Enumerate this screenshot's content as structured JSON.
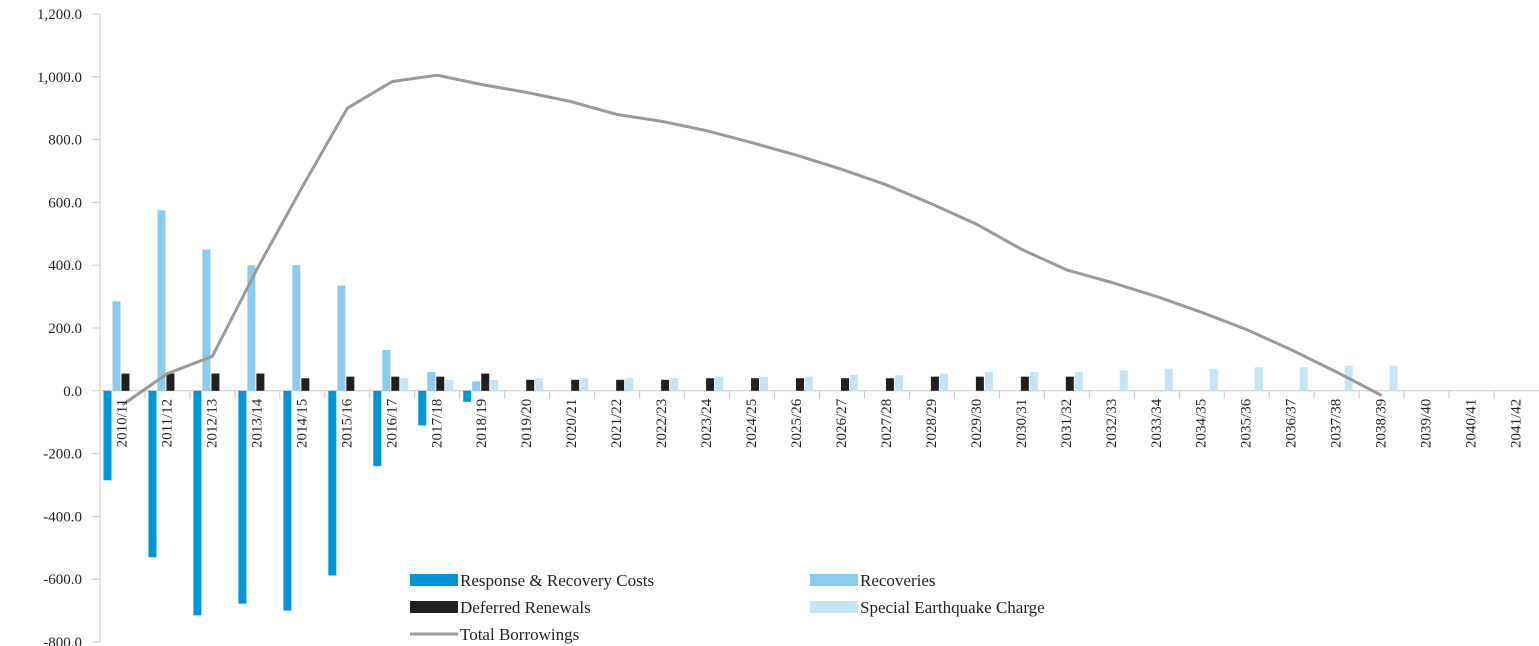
{
  "chart_data": {
    "type": "bar",
    "categories": [
      "2010/11",
      "2011/12",
      "2012/13",
      "2013/14",
      "2014/15",
      "2015/16",
      "2016/17",
      "2017/18",
      "2018/19",
      "2019/20",
      "2020/21",
      "2021/22",
      "2022/23",
      "2023/24",
      "2024/25",
      "2025/26",
      "2026/27",
      "2027/28",
      "2028/29",
      "2029/30",
      "2030/31",
      "2031/32",
      "2032/33",
      "2033/34",
      "2034/35",
      "2035/36",
      "2036/37",
      "2037/38",
      "2038/39",
      "2039/40",
      "2040/41",
      "2041/42"
    ],
    "series": [
      {
        "name": "Response & Recovery Costs",
        "type": "bar",
        "color": "#0095d9",
        "values": [
          -285,
          -530,
          -715,
          -678,
          -700,
          -588,
          -240,
          -110,
          -35,
          null,
          null,
          null,
          null,
          null,
          null,
          null,
          null,
          null,
          null,
          null,
          null,
          null,
          null,
          null,
          null,
          null,
          null,
          null,
          null,
          null,
          null,
          null
        ]
      },
      {
        "name": "Recoveries",
        "type": "bar",
        "color": "#8ccbee",
        "values": [
          285,
          575,
          450,
          400,
          400,
          335,
          130,
          60,
          30,
          null,
          null,
          null,
          null,
          null,
          null,
          null,
          null,
          null,
          null,
          null,
          null,
          null,
          null,
          null,
          null,
          null,
          null,
          null,
          null,
          null,
          null,
          null
        ]
      },
      {
        "name": "Deferred Renewals",
        "type": "bar",
        "color": "#231f20",
        "values": [
          55,
          55,
          55,
          55,
          40,
          45,
          45,
          45,
          55,
          35,
          35,
          35,
          35,
          40,
          40,
          40,
          40,
          40,
          45,
          45,
          45,
          45,
          null,
          null,
          null,
          null,
          null,
          null,
          null,
          null,
          null,
          null
        ]
      },
      {
        "name": "Special Earthquake Charge",
        "type": "bar",
        "color": "#c5e5f6",
        "values": [
          null,
          null,
          null,
          null,
          null,
          null,
          40,
          35,
          35,
          40,
          40,
          40,
          40,
          45,
          45,
          45,
          50,
          50,
          55,
          60,
          60,
          60,
          65,
          70,
          70,
          75,
          75,
          80,
          80,
          null,
          null,
          null
        ]
      },
      {
        "name": "Total Borrowings",
        "type": "line",
        "color": "#999999",
        "values": [
          -45,
          55,
          110,
          390,
          650,
          900,
          985,
          1005,
          975,
          950,
          920,
          880,
          858,
          828,
          790,
          750,
          705,
          655,
          595,
          530,
          450,
          385,
          345,
          300,
          250,
          195,
          130,
          60,
          -15,
          null,
          null,
          null
        ]
      }
    ],
    "ylim": [
      -800,
      1200
    ],
    "yticks": [
      {
        "value": -800,
        "label": "-800.0"
      },
      {
        "value": -600,
        "label": "-600.0"
      },
      {
        "value": -400,
        "label": "-400.0"
      },
      {
        "value": -200,
        "label": "-200.0"
      },
      {
        "value": 0,
        "label": "0.0"
      },
      {
        "value": 200,
        "label": "200.0"
      },
      {
        "value": 400,
        "label": "400.0"
      },
      {
        "value": 600,
        "label": "600.0"
      },
      {
        "value": 800,
        "label": "800.0"
      },
      {
        "value": 1000,
        "label": "1,000.0"
      },
      {
        "value": 1200,
        "label": "1,200.0"
      }
    ],
    "grid": false
  }
}
